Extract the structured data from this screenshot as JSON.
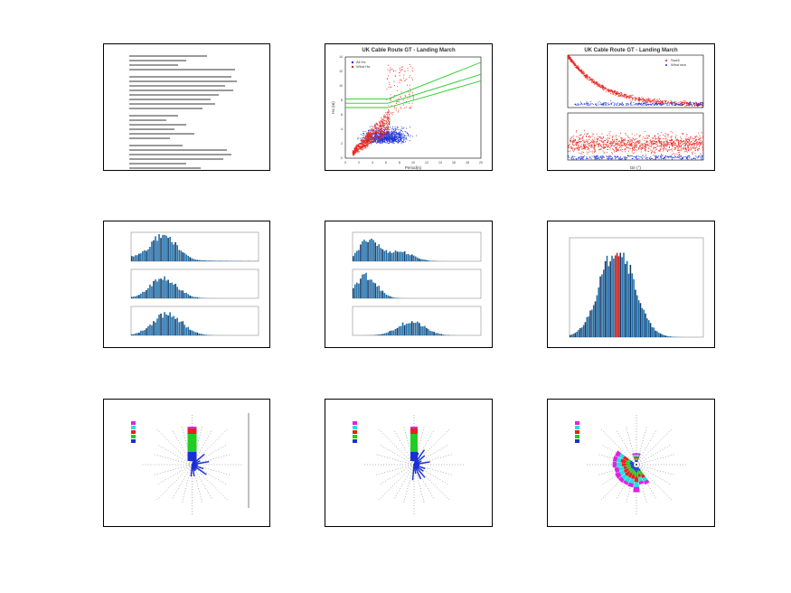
{
  "scatter1": {
    "title": "UK Cable Route GT - Landing March",
    "xlabel": "Period(s)",
    "ylabel": "Hs (m)",
    "legend": [
      "All Hs",
      "Wind Hs"
    ],
    "x_ticks": [
      "0",
      "2",
      "4",
      "6",
      "8",
      "10",
      "12",
      "14",
      "16",
      "18",
      "20"
    ],
    "y_ticks": [
      "0",
      "2",
      "4",
      "6",
      "8",
      "10",
      "12",
      "14"
    ]
  },
  "scatter2": {
    "title": "UK Cable Route GT - Landing March",
    "legend": [
      "Swell",
      "Wind sea"
    ],
    "xlabel": "Dir (°)"
  },
  "chart_data": [
    {
      "type": "scatter",
      "title": "UK Cable Route GT - Landing March",
      "xlabel": "Period(s)",
      "ylabel": "Hs (m)",
      "xlim": [
        0,
        20
      ],
      "ylim": [
        0,
        14
      ]
    },
    {
      "type": "scatter",
      "title": "UK Cable Route GT - Landing March",
      "series": [
        {
          "name": "Swell"
        },
        {
          "name": "Wind sea"
        }
      ]
    },
    {
      "type": "bar",
      "title": "",
      "series_count": 3
    },
    {
      "type": "bar",
      "title": "",
      "series_count": 3
    },
    {
      "type": "bar",
      "title": ""
    },
    {
      "type": "rose"
    },
    {
      "type": "rose"
    },
    {
      "type": "rose"
    }
  ],
  "colors": {
    "red": "#e8221b",
    "blue": "#1a2fd6",
    "green": "#22cc22",
    "bar": "#1f6fa8",
    "barDark": "#1a3a6a"
  }
}
